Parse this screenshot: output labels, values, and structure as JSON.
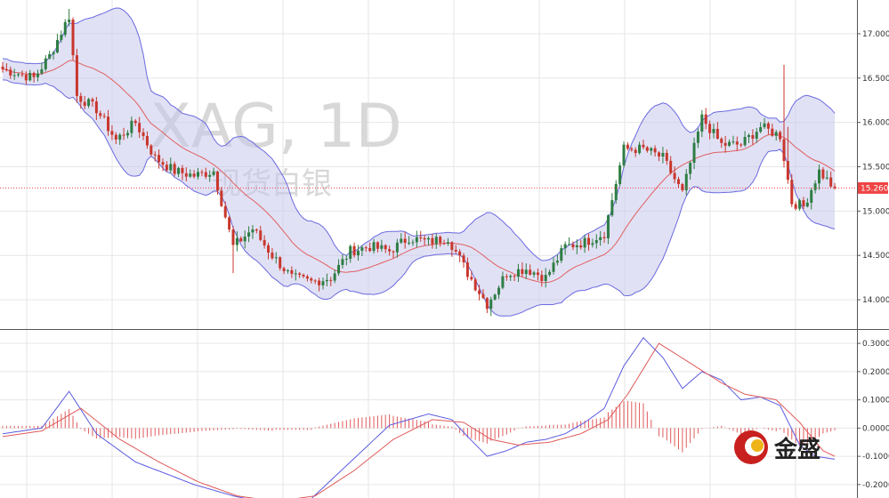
{
  "chart_data": {
    "type": "candlestick",
    "watermark": {
      "symbol_line": "XAG, 1D",
      "name_line": "现货白银"
    },
    "last_price": {
      "value": 15.26,
      "label": "15.260"
    },
    "price_panel": {
      "ylim": [
        13.75,
        17.3
      ],
      "ticks": [
        14.0,
        14.5,
        15.0,
        15.5,
        16.0,
        16.5,
        17.0
      ],
      "tick_labels": [
        "14.000",
        "14.500",
        "15.000",
        "15.500",
        "16.000",
        "16.500",
        "17.000"
      ],
      "anchors": [
        [
          0,
          16.6
        ],
        [
          8,
          16.5
        ],
        [
          12,
          16.75
        ],
        [
          17,
          17.2
        ],
        [
          19,
          16.3
        ],
        [
          24,
          16.15
        ],
        [
          29,
          15.8
        ],
        [
          34,
          16.0
        ],
        [
          39,
          15.6
        ],
        [
          44,
          15.45
        ],
        [
          49,
          15.4
        ],
        [
          54,
          15.45
        ],
        [
          59,
          14.6
        ],
        [
          64,
          14.8
        ],
        [
          69,
          14.5
        ],
        [
          74,
          14.25
        ],
        [
          79,
          14.2
        ],
        [
          84,
          14.25
        ],
        [
          89,
          14.55
        ],
        [
          94,
          14.6
        ],
        [
          99,
          14.55
        ],
        [
          104,
          14.7
        ],
        [
          109,
          14.65
        ],
        [
          114,
          14.7
        ],
        [
          119,
          14.3
        ],
        [
          124,
          13.95
        ],
        [
          129,
          14.3
        ],
        [
          134,
          14.35
        ],
        [
          139,
          14.25
        ],
        [
          144,
          14.6
        ],
        [
          149,
          14.65
        ],
        [
          154,
          14.75
        ],
        [
          159,
          15.7
        ],
        [
          164,
          15.7
        ],
        [
          169,
          15.6
        ],
        [
          174,
          15.2
        ],
        [
          179,
          16.05
        ],
        [
          184,
          15.75
        ],
        [
          189,
          15.75
        ],
        [
          194,
          15.95
        ],
        [
          199,
          15.85
        ],
        [
          202,
          15.1
        ],
        [
          205,
          15.05
        ],
        [
          209,
          15.45
        ],
        [
          213,
          15.25
        ]
      ],
      "spikes": [
        [
          17,
          17.28
        ],
        [
          19,
          16.45
        ],
        [
          59,
          14.3
        ],
        [
          124,
          13.85
        ],
        [
          200,
          16.65
        ],
        [
          201,
          15.95
        ]
      ],
      "colors": {
        "up": "#2e7d44",
        "down": "#c8372d",
        "band_fill": "#c8c8ec",
        "band_line": "#6a6ae0",
        "ma_line": "#e06060",
        "last_line": "#ee4444"
      }
    },
    "macd_panel": {
      "ylim": [
        -0.235,
        0.335
      ],
      "ticks": [
        -0.2,
        -0.1,
        0.0,
        0.1,
        0.2,
        0.3
      ],
      "tick_labels": [
        "-0.2000",
        "-0.1000",
        "0.0000",
        "0.1000",
        "0.2000",
        "0.3000"
      ],
      "macd_anchors": [
        [
          0,
          -0.02
        ],
        [
          10,
          0.0
        ],
        [
          17,
          0.13
        ],
        [
          24,
          -0.02
        ],
        [
          34,
          -0.12
        ],
        [
          49,
          -0.2
        ],
        [
          59,
          -0.24
        ],
        [
          69,
          -0.27
        ],
        [
          79,
          -0.25
        ],
        [
          89,
          -0.12
        ],
        [
          99,
          0.01
        ],
        [
          109,
          0.05
        ],
        [
          115,
          0.03
        ],
        [
          119,
          -0.03
        ],
        [
          124,
          -0.1
        ],
        [
          129,
          -0.08
        ],
        [
          134,
          -0.05
        ],
        [
          139,
          -0.04
        ],
        [
          144,
          -0.02
        ],
        [
          149,
          0.02
        ],
        [
          154,
          0.07
        ],
        [
          159,
          0.22
        ],
        [
          164,
          0.32
        ],
        [
          169,
          0.25
        ],
        [
          174,
          0.14
        ],
        [
          179,
          0.2
        ],
        [
          184,
          0.17
        ],
        [
          189,
          0.1
        ],
        [
          194,
          0.11
        ],
        [
          199,
          0.08
        ],
        [
          204,
          -0.06
        ],
        [
          208,
          -0.1
        ],
        [
          213,
          -0.11
        ]
      ],
      "signal_anchors": [
        [
          0,
          -0.03
        ],
        [
          10,
          -0.01
        ],
        [
          20,
          0.07
        ],
        [
          30,
          -0.04
        ],
        [
          40,
          -0.12
        ],
        [
          50,
          -0.19
        ],
        [
          60,
          -0.24
        ],
        [
          70,
          -0.26
        ],
        [
          80,
          -0.24
        ],
        [
          90,
          -0.15
        ],
        [
          100,
          -0.04
        ],
        [
          110,
          0.03
        ],
        [
          118,
          0.02
        ],
        [
          125,
          -0.04
        ],
        [
          132,
          -0.06
        ],
        [
          140,
          -0.05
        ],
        [
          148,
          -0.02
        ],
        [
          155,
          0.03
        ],
        [
          160,
          0.12
        ],
        [
          168,
          0.3
        ],
        [
          176,
          0.23
        ],
        [
          184,
          0.16
        ],
        [
          190,
          0.12
        ],
        [
          198,
          0.1
        ],
        [
          204,
          0.02
        ],
        [
          210,
          -0.08
        ],
        [
          213,
          -0.1
        ]
      ],
      "colors": {
        "macd": "#5a5ae0",
        "signal": "#e05a5a",
        "hist": "#e05a5a"
      }
    },
    "grid": true
  },
  "logo": {
    "text": "金盛",
    "colors": {
      "red": "#c8201e",
      "gold": "#f0b419"
    }
  }
}
